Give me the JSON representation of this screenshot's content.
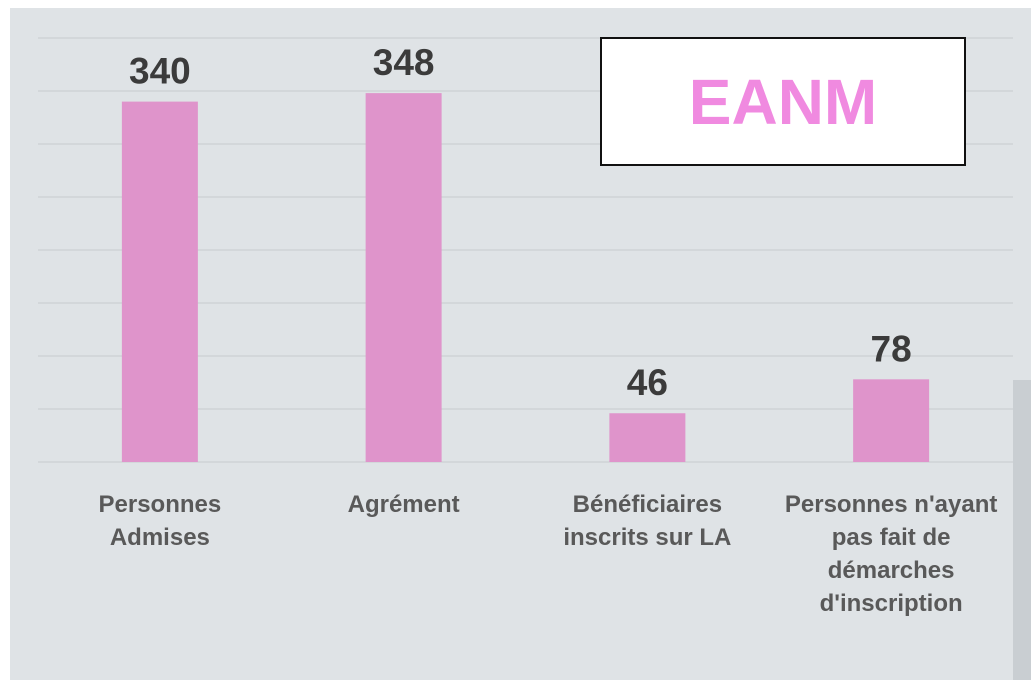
{
  "chart_data": {
    "type": "bar",
    "title": "EANM",
    "categories": [
      "Personnes Admises",
      "Agrément",
      "Bénéficiaires inscrits sur LA",
      "Personnes n'ayant pas fait de démarches d'inscription"
    ],
    "values": [
      340,
      348,
      46,
      78
    ],
    "color": "#df94cb",
    "ylim": [
      0,
      400
    ],
    "yticks": [
      0,
      50,
      100,
      150,
      200,
      250,
      300,
      350,
      400
    ],
    "grid": true
  }
}
